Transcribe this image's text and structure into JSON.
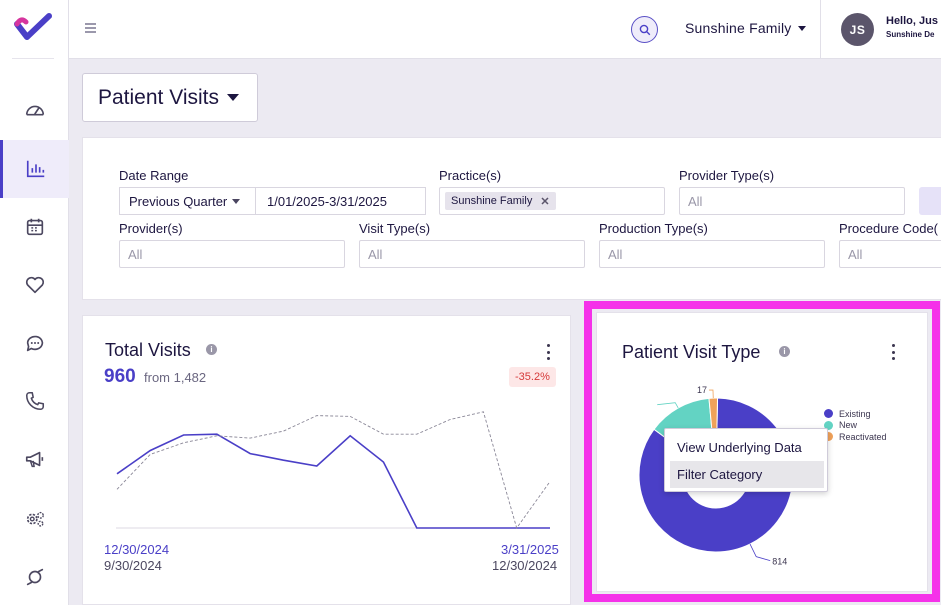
{
  "colors": {
    "accent": "#4a3fc7",
    "existing": "#4a3fc7",
    "new": "#63d3c3",
    "reactivated": "#f0a25a",
    "highlight": "#f531e9",
    "negative_badge": "#d63a3a"
  },
  "sidebar": {
    "items": [
      {
        "icon": "gauge-icon",
        "active": false
      },
      {
        "icon": "bar-chart-icon",
        "active": true
      },
      {
        "icon": "calendar-icon",
        "active": false
      },
      {
        "icon": "heart-icon",
        "active": false
      },
      {
        "icon": "chat-bubble-icon",
        "active": false
      },
      {
        "icon": "phone-icon",
        "active": false
      },
      {
        "icon": "megaphone-icon",
        "active": false
      },
      {
        "icon": "gears-icon",
        "active": false
      },
      {
        "icon": "loop-icon",
        "active": false
      }
    ]
  },
  "topbar": {
    "practice": "Sunshine Family",
    "user_initials": "JS",
    "greeting": "Hello, Jus",
    "sub": "Sunshine De"
  },
  "report": {
    "title": "Patient Visits"
  },
  "filters": {
    "date_range": {
      "label": "Date Range",
      "preset": "Previous Quarter",
      "value": "1/01/2025-3/31/2025"
    },
    "practices": {
      "label": "Practice(s)",
      "chip": "Sunshine Family"
    },
    "provider_types": {
      "label": "Provider Type(s)",
      "placeholder": "All"
    },
    "providers": {
      "label": "Provider(s)",
      "placeholder": "All"
    },
    "visit_types": {
      "label": "Visit Type(s)",
      "placeholder": "All"
    },
    "production_types": {
      "label": "Production Type(s)",
      "placeholder": "All"
    },
    "procedure_codes": {
      "label": "Procedure Code(",
      "placeholder": "All"
    }
  },
  "total_visits": {
    "title": "Total Visits",
    "value": "960",
    "compare": "from 1,482",
    "delta": "-35.2%",
    "current_start": "12/30/2024",
    "previous_start": "9/30/2024",
    "current_end": "3/31/2025",
    "previous_end": "12/30/2024"
  },
  "visit_type": {
    "title": "Patient Visit Type",
    "legend": [
      "Existing",
      "New",
      "Reactivated"
    ],
    "labels": {
      "reactivated": "17",
      "existing": "814"
    }
  },
  "context_menu": {
    "items": [
      "View Underlying Data",
      "Filter Category"
    ]
  },
  "chart_data": [
    {
      "type": "line",
      "title": "Total Visits",
      "series": [
        {
          "values": [
            140,
            200,
            240,
            242,
            192,
            175,
            160,
            238,
            170,
            0,
            0,
            0,
            0,
            0
          ]
        },
        {
          "values": [
            100,
            190,
            220,
            238,
            232,
            250,
            290,
            288,
            242,
            242,
            280,
            300,
            0,
            120
          ]
        }
      ],
      "ylim": [
        0,
        320
      ]
    },
    {
      "type": "pie",
      "title": "Patient Visit Type",
      "categories": [
        "Existing",
        "New",
        "Reactivated"
      ],
      "values": [
        814,
        129,
        17
      ]
    }
  ]
}
